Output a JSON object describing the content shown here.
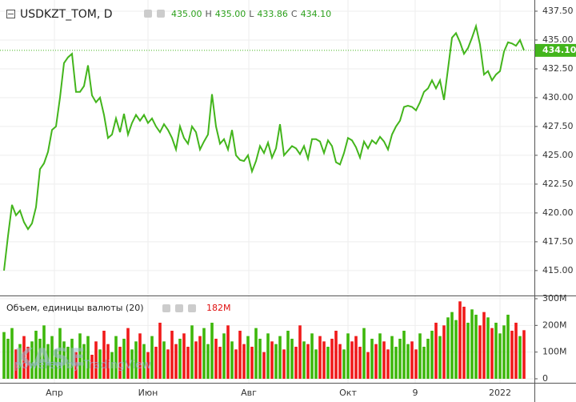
{
  "chart_data": [
    {
      "type": "line",
      "title": "USDKZT_TOM, D",
      "ohlc_labels": [
        "435.00",
        "H",
        "435.00",
        "L",
        "433.86",
        "C",
        "434.10"
      ],
      "last_label": "434.10",
      "color": "#43b51c",
      "grid": true,
      "values": [
        415,
        418,
        420.7,
        419.8,
        420.2,
        419.2,
        418.6,
        419.1,
        420.5,
        423.8,
        424.3,
        425.3,
        427.2,
        427.5,
        430,
        433,
        433.5,
        433.8,
        430.5,
        430.5,
        431,
        432.8,
        430.2,
        429.6,
        430,
        428.5,
        426.5,
        426.8,
        428.2,
        427,
        428.6,
        426.8,
        427.8,
        428.5,
        428,
        428.5,
        427.8,
        428.2,
        427.5,
        427,
        427.7,
        427.2,
        426.5,
        425.5,
        427.5,
        426.5,
        426,
        427.5,
        427,
        425.5,
        426.2,
        426.8,
        430.3,
        427.5,
        426,
        426.4,
        425.5,
        427.2,
        425,
        424.6,
        424.5,
        425,
        423.6,
        424.5,
        425.8,
        425.2,
        426.1,
        424.8,
        425.6,
        427.7,
        425,
        425.4,
        425.8,
        425.6,
        425.1,
        425.8,
        424.7,
        426.4,
        426.4,
        426.2,
        425.2,
        426.3,
        425.8,
        424.4,
        424.2,
        425.2,
        426.5,
        426.3,
        425.7,
        424.8,
        426.2,
        425.6,
        426.3,
        426,
        426.6,
        426.2,
        425.5,
        426.8,
        427.5,
        428,
        429.2,
        429.3,
        429.2,
        428.9,
        429.6,
        430.5,
        430.8,
        431.5,
        430.8,
        431.5,
        429.8,
        432.5,
        435.2,
        435.6,
        434.8,
        433.8,
        434.3,
        435.2,
        436.2,
        434.6,
        432,
        432.3,
        431.5,
        432,
        432.3,
        434,
        434.8,
        434.7,
        434.5,
        435,
        434.1
      ],
      "xlim": [
        -1,
        132.6
      ],
      "xticks": [
        {
          "value": 12.6,
          "label": "Апр"
        },
        {
          "value": 36,
          "label": "Июн"
        },
        {
          "value": 61.2,
          "label": "Авг"
        },
        {
          "value": 86,
          "label": "Окт"
        },
        {
          "value": 102.8,
          "label": "9"
        },
        {
          "value": 124,
          "label": "2022"
        }
      ],
      "ylim": [
        412.84,
        438.47
      ],
      "yticks": [
        {
          "value": 415,
          "label": "415.00"
        },
        {
          "value": 417.5,
          "label": "417.50"
        },
        {
          "value": 420,
          "label": "420.00"
        },
        {
          "value": 422.5,
          "label": "422.50"
        },
        {
          "value": 425,
          "label": "425.00"
        },
        {
          "value": 427.5,
          "label": "427.50"
        },
        {
          "value": 430,
          "label": "430.00"
        },
        {
          "value": 432.5,
          "label": "432.50"
        },
        {
          "value": 435,
          "label": "435.00"
        },
        {
          "value": 437.5,
          "label": "437.50"
        }
      ]
    },
    {
      "type": "bar",
      "title": "Объем, единицы валюты (20)",
      "up_color": "#3eb80c",
      "down_color": "#f01a1a",
      "values": [
        175,
        150,
        190,
        110,
        130,
        160,
        120,
        140,
        180,
        150,
        200,
        130,
        160,
        110,
        190,
        140,
        120,
        150,
        100,
        170,
        130,
        160,
        90,
        140,
        110,
        180,
        130,
        100,
        160,
        120,
        150,
        190,
        110,
        140,
        170,
        130,
        100,
        160,
        120,
        210,
        140,
        110,
        180,
        130,
        150,
        170,
        120,
        200,
        140,
        160,
        190,
        130,
        210,
        150,
        120,
        170,
        200,
        140,
        110,
        180,
        130,
        160,
        120,
        190,
        150,
        100,
        170,
        140,
        130,
        160,
        110,
        180,
        150,
        120,
        200,
        140,
        130,
        170,
        110,
        160,
        140,
        120,
        150,
        180,
        130,
        110,
        170,
        140,
        160,
        120,
        190,
        100,
        150,
        130,
        170,
        140,
        110,
        160,
        120,
        150,
        180,
        130,
        140,
        110,
        170,
        120,
        150,
        180,
        210,
        160,
        200,
        230,
        250,
        220,
        290,
        270,
        210,
        260,
        240,
        200,
        250,
        230,
        190,
        210,
        170,
        200,
        240,
        180,
        210,
        160,
        182
      ],
      "last_label": "182M",
      "ylim": [
        -15,
        309
      ],
      "yticks": [
        {
          "value": 0,
          "label": "0"
        },
        {
          "value": 100,
          "label": "100M"
        },
        {
          "value": 200,
          "label": "200M"
        },
        {
          "value": 300,
          "label": "300M"
        }
      ]
    }
  ],
  "watermark": {
    "logo": "KASE",
    "credit": "powered by TradingView"
  }
}
